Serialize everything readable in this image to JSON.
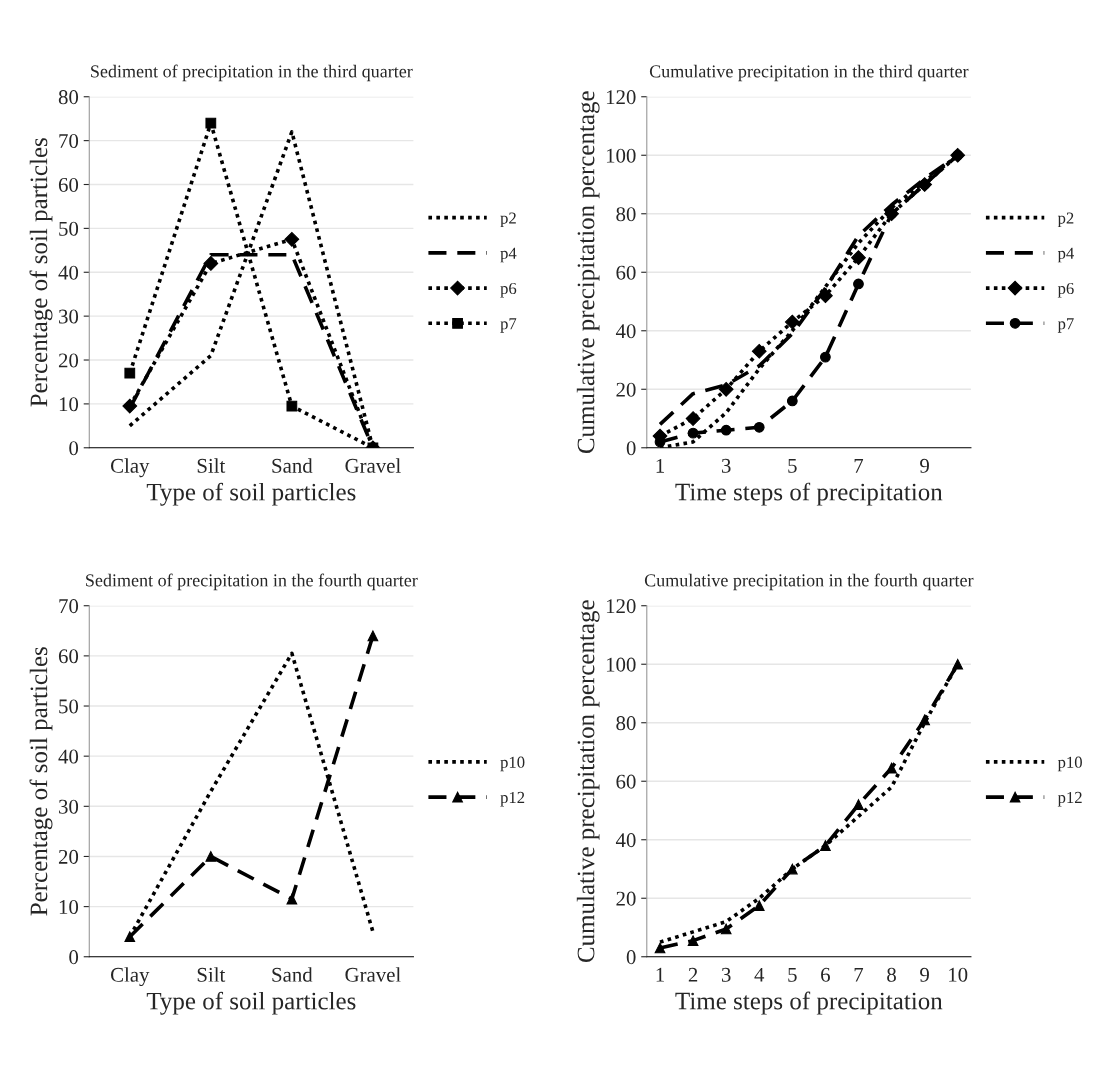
{
  "chart_data": [
    {
      "type": "line",
      "title": "Sediment of precipitation in the third quarter",
      "xlabel": "Type of soil particles",
      "ylabel": "Percentage of soil particles",
      "categories": [
        "Clay",
        "Silt",
        "Sand",
        "Gravel"
      ],
      "ylim": [
        0,
        80
      ],
      "yticks": [
        0,
        10,
        20,
        30,
        40,
        50,
        60,
        70,
        80
      ],
      "grid": "y",
      "legend": "right",
      "series": [
        {
          "name": "p2",
          "color": "#000000",
          "values": [
            5,
            21,
            72,
            0
          ],
          "marker": "none",
          "line_style": "dotted"
        },
        {
          "name": "p4",
          "color": "#000000",
          "values": [
            9,
            44,
            44,
            0
          ],
          "marker": "none",
          "line_style": "dashed"
        },
        {
          "name": "p6",
          "color": "#000000",
          "values": [
            9.5,
            42,
            47.5,
            0
          ],
          "marker": "diamond",
          "line_style": "dotted"
        },
        {
          "name": "p7",
          "color": "#000000",
          "values": [
            17,
            74,
            9.5,
            0
          ],
          "marker": "square",
          "line_style": "dotted"
        }
      ]
    },
    {
      "type": "line",
      "title": "Cumulative precipitation in the third quarter",
      "xlabel": "Time steps of precipitation",
      "ylabel": "Cumulative precipitation percentage",
      "x": [
        1,
        2,
        3,
        4,
        5,
        6,
        7,
        8,
        9,
        10
      ],
      "xlim": [
        0.6,
        10.4
      ],
      "xticks": [
        1,
        3,
        5,
        7,
        9
      ],
      "ylim": [
        0,
        120
      ],
      "yticks": [
        0,
        20,
        40,
        60,
        80,
        100,
        120
      ],
      "grid": "y",
      "legend": "right",
      "series": [
        {
          "name": "p2",
          "color": "#000000",
          "values": [
            0,
            2,
            12,
            27,
            40,
            55,
            70,
            82,
            91,
            100
          ],
          "marker": "none",
          "line_style": "dotted"
        },
        {
          "name": "p4",
          "color": "#000000",
          "values": [
            8,
            18.5,
            21.5,
            28,
            39,
            54.5,
            72.5,
            83,
            92,
            100
          ],
          "marker": "none",
          "line_style": "dashed"
        },
        {
          "name": "p6",
          "color": "#000000",
          "values": [
            4,
            10,
            20,
            33,
            43,
            52,
            65,
            80,
            90,
            100
          ],
          "marker": "diamond",
          "line_style": "dotted"
        },
        {
          "name": "p7",
          "color": "#000000",
          "values": [
            2,
            5,
            6,
            7,
            16,
            31,
            56,
            80,
            90,
            100
          ],
          "marker": "circle",
          "line_style": "dashed"
        }
      ]
    },
    {
      "type": "line",
      "title": "Sediment of precipitation in the fourth quarter",
      "xlabel": "Type of soil particles",
      "ylabel": "Percentage of soil particles",
      "categories": [
        "Clay",
        "Silt",
        "Sand",
        "Gravel"
      ],
      "ylim": [
        0,
        70
      ],
      "yticks": [
        0,
        10,
        20,
        30,
        40,
        50,
        60,
        70
      ],
      "grid": "y",
      "legend": "right",
      "series": [
        {
          "name": "p10",
          "color": "#000000",
          "values": [
            4,
            33,
            60.5,
            5
          ],
          "marker": "none",
          "line_style": "dotted"
        },
        {
          "name": "p12",
          "color": "#000000",
          "values": [
            4,
            20,
            11.5,
            64
          ],
          "marker": "triangle",
          "line_style": "dashed"
        }
      ]
    },
    {
      "type": "line",
      "title": "Cumulative precipitation in the fourth quarter",
      "xlabel": "Time steps of precipitation",
      "ylabel": "Cumulative precipitation percentage",
      "x": [
        1,
        2,
        3,
        4,
        5,
        6,
        7,
        8,
        9,
        10
      ],
      "xlim": [
        0.6,
        10.4
      ],
      "xticks": [
        1,
        2,
        3,
        4,
        5,
        6,
        7,
        8,
        9,
        10
      ],
      "ylim": [
        0,
        120
      ],
      "yticks": [
        0,
        20,
        40,
        60,
        80,
        100,
        120
      ],
      "grid": "y",
      "legend": "right",
      "series": [
        {
          "name": "p10",
          "color": "#000000",
          "values": [
            5,
            8.5,
            12,
            20,
            30,
            38,
            48,
            58,
            80,
            100
          ],
          "marker": "none",
          "line_style": "dotted"
        },
        {
          "name": "p12",
          "color": "#000000",
          "values": [
            3,
            5.5,
            9.5,
            17.5,
            30,
            38,
            52,
            64.5,
            81,
            100
          ],
          "marker": "triangle",
          "line_style": "dashed"
        }
      ]
    }
  ]
}
